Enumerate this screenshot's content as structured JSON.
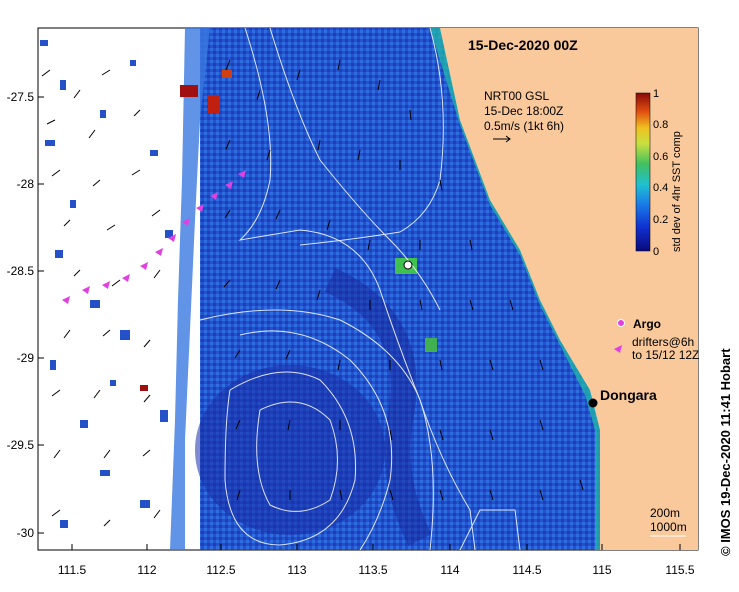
{
  "title": "15-Dec-2020 00Z",
  "info": {
    "line1": "NRT00 GSL",
    "line2": "15-Dec 18:00Z",
    "line3": "0.5m/s (1kt 6h)"
  },
  "colorbar": {
    "label": "std dev of 4hr SST comp",
    "ticks": [
      "0",
      "0.2",
      "0.4",
      "0.6",
      "0.8",
      "1"
    ],
    "range": [
      0,
      1
    ]
  },
  "legend": {
    "argo": "Argo",
    "drifters_line1": "drifters@6h",
    "drifters_line2": "to 15/12 12Z"
  },
  "place": {
    "name": "Dongara"
  },
  "contours": {
    "line1": "200m",
    "line2": "1000m"
  },
  "credit": "© IMOS 19-Dec-2020 11:41 Hobart",
  "axes": {
    "x_ticks": [
      "111.5",
      "112",
      "112.5",
      "113",
      "113.5",
      "114",
      "114.5",
      "115",
      "115.5"
    ],
    "y_ticks": [
      "-27.5",
      "-28",
      "-28.5",
      "-29",
      "-29.5",
      "-30"
    ]
  },
  "colors": {
    "land": "#f9c89b",
    "ocean_deep": "#1c2fb4",
    "ocean_mid": "#2a64d6",
    "arrow": "#000000",
    "drifter": "#e040e0",
    "contour": "#ffffff"
  }
}
